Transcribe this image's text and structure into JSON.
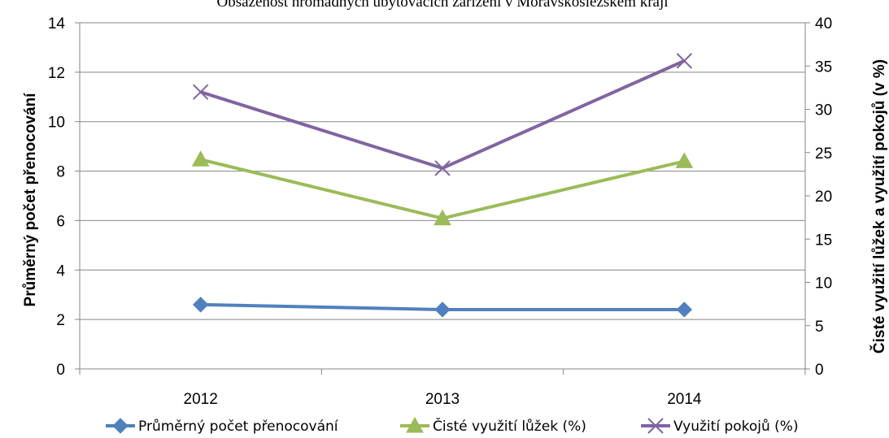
{
  "chart_data": {
    "type": "line",
    "title": "Obsazenost hromadných ubytovacích zařízení v Moravskoslezském kraji",
    "categories": [
      "2012",
      "2013",
      "2014"
    ],
    "y_left": {
      "label": "Průměrný počet přenocování",
      "range": [
        0,
        14
      ],
      "ticks": [
        "0",
        "2",
        "4",
        "6",
        "8",
        "10",
        "12",
        "14"
      ]
    },
    "y_right": {
      "label": "Čisté využití lůžek a využití pokojů (v %)",
      "range": [
        0,
        40
      ],
      "ticks": [
        "0",
        "5",
        "10",
        "15",
        "20",
        "25",
        "30",
        "35",
        "40"
      ]
    },
    "grid": true,
    "legend_position": "bottom",
    "series": [
      {
        "name": "Průměrný počet přenocování",
        "axis": "left",
        "values": [
          2.6,
          2.4,
          2.4
        ],
        "color": "#4F81BD",
        "marker": "diamond"
      },
      {
        "name": "Čisté využití lůžek (%)",
        "axis": "right",
        "values": [
          24.2,
          17.4,
          24.0
        ],
        "color": "#9BBB59",
        "marker": "triangle"
      },
      {
        "name": "Využití pokojů (%)",
        "axis": "right",
        "values": [
          32.0,
          23.2,
          35.6
        ],
        "color": "#8064A2",
        "marker": "x"
      }
    ]
  }
}
